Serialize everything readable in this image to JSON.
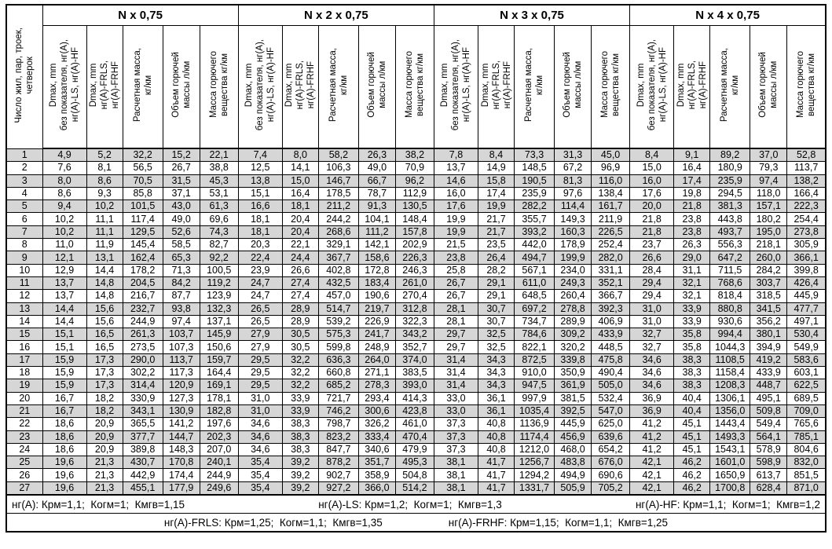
{
  "table": {
    "corner_header": "Число жил, пар, троек,\nчетверок",
    "groups": [
      {
        "label": "N x 0,75"
      },
      {
        "label": "N x 2 x 0,75"
      },
      {
        "label": "N x 3 x 0,75"
      },
      {
        "label": "N x 4 x 0,75"
      }
    ],
    "sub_headers": [
      "Dmax, mm\nбез показателя, нг(А),\nнг(А)-LS, нг(А)-HF",
      "Dmax, mm\nнг(А)-FRLS,\nнг(А)-FRHF",
      "Расчетная масса,\nкг/км",
      "Объем горючей\nмассы л/км",
      "Масса горючего\nвещества кг/км"
    ],
    "rows": [
      {
        "n": "1",
        "values": [
          "4,9",
          "5,2",
          "32,2",
          "15,2",
          "22,1",
          "7,4",
          "8,0",
          "58,2",
          "26,3",
          "38,2",
          "7,8",
          "8,4",
          "73,3",
          "31,3",
          "45,0",
          "8,4",
          "9,1",
          "89,2",
          "37,0",
          "52,8"
        ]
      },
      {
        "n": "2",
        "values": [
          "7,6",
          "8,1",
          "56,5",
          "26,7",
          "38,8",
          "12,5",
          "14,1",
          "106,3",
          "49,0",
          "70,9",
          "13,7",
          "14,9",
          "148,5",
          "67,2",
          "96,9",
          "15,0",
          "16,4",
          "180,9",
          "79,3",
          "113,7"
        ]
      },
      {
        "n": "3",
        "values": [
          "8,0",
          "8,6",
          "70,5",
          "31,5",
          "45,3",
          "13,8",
          "15,0",
          "146,7",
          "66,7",
          "96,2",
          "14,6",
          "15,8",
          "190,5",
          "81,3",
          "116,0",
          "16,0",
          "17,4",
          "235,9",
          "97,4",
          "138,2"
        ]
      },
      {
        "n": "4",
        "values": [
          "8,6",
          "9,3",
          "85,8",
          "37,1",
          "53,1",
          "15,1",
          "16,4",
          "178,5",
          "78,7",
          "112,9",
          "16,0",
          "17,4",
          "235,9",
          "97,6",
          "138,4",
          "17,6",
          "19,8",
          "294,5",
          "118,0",
          "166,4"
        ]
      },
      {
        "n": "5",
        "values": [
          "9,4",
          "10,2",
          "101,5",
          "43,0",
          "61,3",
          "16,6",
          "18,1",
          "211,2",
          "91,3",
          "130,5",
          "17,6",
          "19,9",
          "282,2",
          "114,4",
          "161,7",
          "20,0",
          "21,8",
          "381,3",
          "157,1",
          "222,3"
        ]
      },
      {
        "n": "6",
        "values": [
          "10,2",
          "11,1",
          "117,4",
          "49,0",
          "69,6",
          "18,1",
          "20,4",
          "244,2",
          "104,1",
          "148,4",
          "19,9",
          "21,7",
          "355,7",
          "149,3",
          "211,9",
          "21,8",
          "23,8",
          "443,8",
          "180,2",
          "254,4"
        ]
      },
      {
        "n": "7",
        "values": [
          "10,2",
          "11,1",
          "129,5",
          "52,6",
          "74,3",
          "18,1",
          "20,4",
          "268,6",
          "111,2",
          "157,8",
          "19,9",
          "21,7",
          "393,2",
          "160,3",
          "226,5",
          "21,8",
          "23,8",
          "493,7",
          "195,0",
          "273,8"
        ]
      },
      {
        "n": "8",
        "values": [
          "11,0",
          "11,9",
          "145,4",
          "58,5",
          "82,7",
          "20,3",
          "22,1",
          "329,1",
          "142,1",
          "202,9",
          "21,5",
          "23,5",
          "442,0",
          "178,9",
          "252,4",
          "23,7",
          "26,3",
          "556,3",
          "218,1",
          "305,9"
        ]
      },
      {
        "n": "9",
        "values": [
          "12,1",
          "13,1",
          "162,4",
          "65,3",
          "92,2",
          "22,4",
          "24,4",
          "367,7",
          "158,6",
          "226,3",
          "23,8",
          "26,4",
          "494,7",
          "199,9",
          "282,0",
          "26,6",
          "29,0",
          "647,2",
          "260,0",
          "366,1"
        ]
      },
      {
        "n": "10",
        "values": [
          "12,9",
          "14,4",
          "178,2",
          "71,3",
          "100,5",
          "23,9",
          "26,6",
          "402,8",
          "172,8",
          "246,3",
          "25,8",
          "28,2",
          "567,1",
          "234,0",
          "331,1",
          "28,4",
          "31,1",
          "711,5",
          "284,2",
          "399,8"
        ]
      },
      {
        "n": "11",
        "values": [
          "13,7",
          "14,8",
          "204,5",
          "84,2",
          "119,2",
          "24,7",
          "27,4",
          "432,5",
          "183,4",
          "261,0",
          "26,7",
          "29,1",
          "611,0",
          "249,3",
          "352,1",
          "29,4",
          "32,1",
          "768,6",
          "303,7",
          "426,4"
        ]
      },
      {
        "n": "12",
        "values": [
          "13,7",
          "14,8",
          "216,7",
          "87,7",
          "123,9",
          "24,7",
          "27,4",
          "457,0",
          "190,6",
          "270,4",
          "26,7",
          "29,1",
          "648,5",
          "260,4",
          "366,7",
          "29,4",
          "32,1",
          "818,4",
          "318,5",
          "445,9"
        ]
      },
      {
        "n": "13",
        "values": [
          "14,4",
          "15,6",
          "232,7",
          "93,8",
          "132,3",
          "26,5",
          "28,9",
          "514,7",
          "219,7",
          "312,8",
          "28,1",
          "30,7",
          "697,2",
          "278,8",
          "392,3",
          "31,0",
          "33,9",
          "880,8",
          "341,5",
          "477,7"
        ]
      },
      {
        "n": "14",
        "values": [
          "14,4",
          "15,6",
          "244,9",
          "97,4",
          "137,1",
          "26,5",
          "28,9",
          "539,2",
          "226,9",
          "322,3",
          "28,1",
          "30,7",
          "734,7",
          "289,9",
          "406,9",
          "31,0",
          "33,9",
          "930,6",
          "356,2",
          "497,1"
        ]
      },
      {
        "n": "15",
        "values": [
          "15,1",
          "16,5",
          "261,3",
          "103,7",
          "145,9",
          "27,9",
          "30,5",
          "575,3",
          "241,7",
          "343,2",
          "29,7",
          "32,5",
          "784,6",
          "309,2",
          "433,9",
          "32,7",
          "35,8",
          "994,4",
          "380,1",
          "530,4"
        ]
      },
      {
        "n": "16",
        "values": [
          "15,1",
          "16,5",
          "273,5",
          "107,3",
          "150,6",
          "27,9",
          "30,5",
          "599,8",
          "248,9",
          "352,7",
          "29,7",
          "32,5",
          "822,1",
          "320,2",
          "448,5",
          "32,7",
          "35,8",
          "1044,3",
          "394,9",
          "549,9"
        ]
      },
      {
        "n": "17",
        "values": [
          "15,9",
          "17,3",
          "290,0",
          "113,7",
          "159,7",
          "29,5",
          "32,2",
          "636,3",
          "264,0",
          "374,0",
          "31,4",
          "34,3",
          "872,5",
          "339,8",
          "475,8",
          "34,6",
          "38,3",
          "1108,5",
          "419,2",
          "583,6"
        ]
      },
      {
        "n": "18",
        "values": [
          "15,9",
          "17,3",
          "302,2",
          "117,3",
          "164,4",
          "29,5",
          "32,2",
          "660,8",
          "271,1",
          "383,5",
          "31,4",
          "34,3",
          "910,0",
          "350,9",
          "490,4",
          "34,6",
          "38,3",
          "1158,4",
          "433,9",
          "603,1"
        ]
      },
      {
        "n": "19",
        "values": [
          "15,9",
          "17,3",
          "314,4",
          "120,9",
          "169,1",
          "29,5",
          "32,2",
          "685,2",
          "278,3",
          "393,0",
          "31,4",
          "34,3",
          "947,5",
          "361,9",
          "505,0",
          "34,6",
          "38,3",
          "1208,3",
          "448,7",
          "622,5"
        ]
      },
      {
        "n": "20",
        "values": [
          "16,7",
          "18,2",
          "330,9",
          "127,3",
          "178,1",
          "31,0",
          "33,9",
          "721,7",
          "293,4",
          "414,3",
          "33,0",
          "36,1",
          "997,9",
          "381,5",
          "532,4",
          "36,9",
          "40,4",
          "1306,1",
          "495,1",
          "689,5"
        ]
      },
      {
        "n": "21",
        "values": [
          "16,7",
          "18,2",
          "343,1",
          "130,9",
          "182,8",
          "31,0",
          "33,9",
          "746,2",
          "300,6",
          "423,8",
          "33,0",
          "36,1",
          "1035,4",
          "392,5",
          "547,0",
          "36,9",
          "40,4",
          "1356,0",
          "509,8",
          "709,0"
        ]
      },
      {
        "n": "22",
        "values": [
          "18,6",
          "20,9",
          "365,5",
          "141,2",
          "197,6",
          "34,6",
          "38,3",
          "798,7",
          "326,2",
          "461,0",
          "37,3",
          "40,8",
          "1136,9",
          "445,9",
          "625,0",
          "41,2",
          "45,1",
          "1443,4",
          "549,4",
          "765,6"
        ]
      },
      {
        "n": "23",
        "values": [
          "18,6",
          "20,9",
          "377,7",
          "144,7",
          "202,3",
          "34,6",
          "38,3",
          "823,2",
          "333,4",
          "470,4",
          "37,3",
          "40,8",
          "1174,4",
          "456,9",
          "639,6",
          "41,2",
          "45,1",
          "1493,3",
          "564,1",
          "785,1"
        ]
      },
      {
        "n": "24",
        "values": [
          "18,6",
          "20,9",
          "389,8",
          "148,3",
          "207,0",
          "34,6",
          "38,3",
          "847,7",
          "340,6",
          "479,9",
          "37,3",
          "40,8",
          "1212,0",
          "468,0",
          "654,2",
          "41,2",
          "45,1",
          "1543,1",
          "578,9",
          "804,6"
        ]
      },
      {
        "n": "25",
        "values": [
          "19,6",
          "21,3",
          "430,7",
          "170,8",
          "240,1",
          "35,4",
          "39,2",
          "878,2",
          "351,7",
          "495,3",
          "38,1",
          "41,7",
          "1256,7",
          "483,8",
          "676,0",
          "42,1",
          "46,2",
          "1601,0",
          "598,9",
          "832,0"
        ]
      },
      {
        "n": "26",
        "values": [
          "19,6",
          "21,3",
          "442,9",
          "174,4",
          "244,9",
          "35,4",
          "39,2",
          "902,7",
          "358,9",
          "504,8",
          "38,1",
          "41,7",
          "1294,2",
          "494,9",
          "690,6",
          "42,1",
          "46,2",
          "1650,9",
          "613,7",
          "851,5"
        ]
      },
      {
        "n": "27",
        "values": [
          "19,6",
          "21,3",
          "455,1",
          "177,9",
          "249,6",
          "35,4",
          "39,2",
          "927,2",
          "366,0",
          "514,2",
          "38,1",
          "41,7",
          "1331,7",
          "505,9",
          "705,2",
          "42,1",
          "46,2",
          "1700,8",
          "628,4",
          "871,0"
        ]
      }
    ],
    "footnotes": {
      "line1": [
        "нг(А): Крм=1,1;  Когм=1;  Кмгв=1,15",
        "нг(А)-LS: Крм=1,2;  Когм=1;  Кмгв=1,3",
        "нг(А)-HF: Крм=1,1;  Когм=1;  Кмгв=1,2"
      ],
      "line2": [
        "нг(А)-FRLS: Крм=1,25;  Когм=1,1;  Кмгв=1,35",
        "нг(А)-FRHF: Крм=1,15;  Когм=1,1;  Кмгв=1,25"
      ]
    },
    "colors": {
      "row_shade": "#d6d6d6",
      "border": "#000000"
    }
  }
}
